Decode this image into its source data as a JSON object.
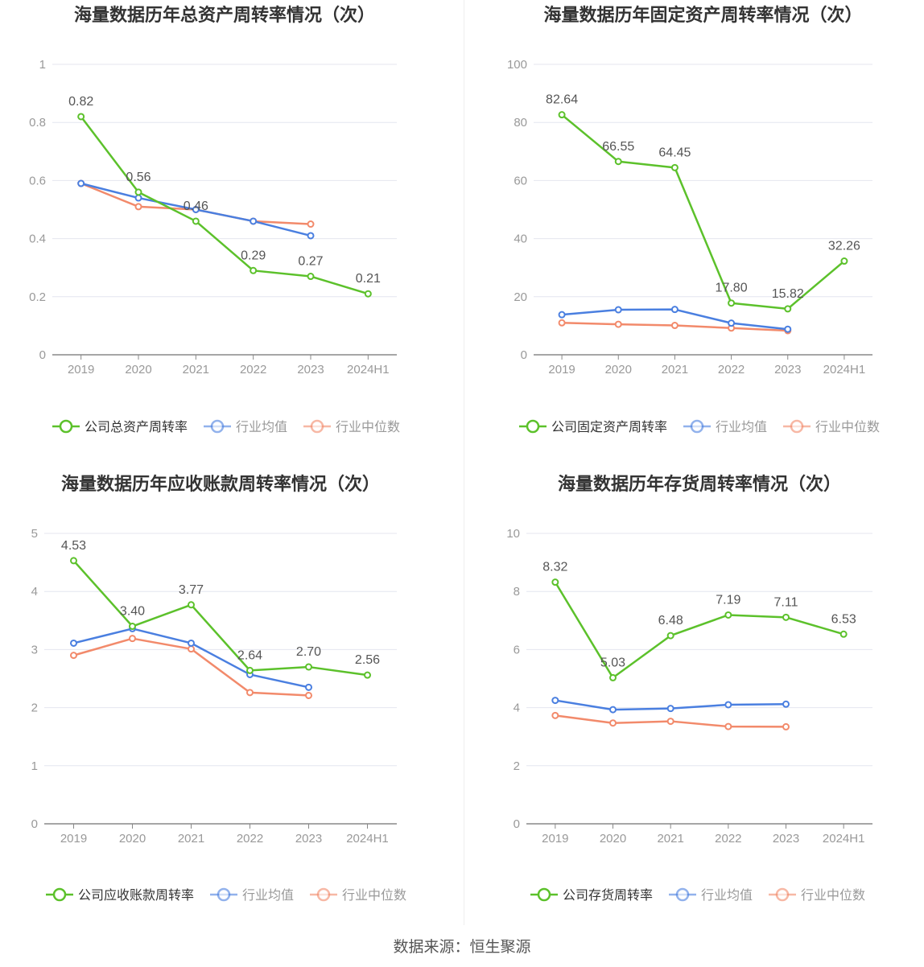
{
  "source_text": "数据来源：恒生聚源",
  "colors": {
    "company": "#5cc12b",
    "avg": "#4a7fe0",
    "median": "#f28a6b",
    "grid": "#e4e6ef",
    "axis": "#999999",
    "text": "#555555"
  },
  "chart_data": [
    {
      "type": "line",
      "title": "海量数据历年总资产周转率情况（次）",
      "categories": [
        "2019",
        "2020",
        "2021",
        "2022",
        "2023",
        "2024H1"
      ],
      "ylim": [
        0,
        1
      ],
      "yticks": [
        "0",
        "0.2",
        "0.4",
        "0.6",
        "0.8",
        "1"
      ],
      "ytick_values": [
        0,
        0.2,
        0.4,
        0.6,
        0.8,
        1
      ],
      "legend_position": "bottom",
      "series": [
        {
          "name": "公司总资产周转率",
          "values": [
            0.82,
            0.56,
            0.46,
            0.29,
            0.27,
            0.21
          ],
          "labels": [
            "0.82",
            "0.56",
            "0.46",
            "0.29",
            "0.27",
            "0.21"
          ]
        },
        {
          "name": "行业均值",
          "values": [
            0.59,
            0.54,
            0.5,
            0.46,
            0.41,
            null
          ]
        },
        {
          "name": "行业中位数",
          "values": [
            0.59,
            0.51,
            0.5,
            0.46,
            0.45,
            null
          ]
        }
      ]
    },
    {
      "type": "line",
      "title": "海量数据历年固定资产周转率情况（次）",
      "categories": [
        "2019",
        "2020",
        "2021",
        "2022",
        "2023",
        "2024H1"
      ],
      "ylim": [
        0,
        100
      ],
      "yticks": [
        "0",
        "20",
        "40",
        "60",
        "80",
        "100"
      ],
      "ytick_values": [
        0,
        20,
        40,
        60,
        80,
        100
      ],
      "legend_position": "bottom",
      "series": [
        {
          "name": "公司固定资产周转率",
          "values": [
            82.64,
            66.55,
            64.45,
            17.8,
            15.82,
            32.26
          ],
          "labels": [
            "82.64",
            "66.55",
            "64.45",
            "17.80",
            "15.82",
            "32.26"
          ]
        },
        {
          "name": "行业均值",
          "values": [
            13.8,
            15.5,
            15.6,
            10.9,
            8.8,
            null
          ]
        },
        {
          "name": "行业中位数",
          "values": [
            11.0,
            10.5,
            10.1,
            9.2,
            8.3,
            null
          ]
        }
      ]
    },
    {
      "type": "line",
      "title": "海量数据历年应收账款周转率情况（次）",
      "categories": [
        "2019",
        "2020",
        "2021",
        "2022",
        "2023",
        "2024H1"
      ],
      "ylim": [
        0,
        5
      ],
      "yticks": [
        "0",
        "1",
        "2",
        "3",
        "4",
        "5"
      ],
      "ytick_values": [
        0,
        1,
        2,
        3,
        4,
        5
      ],
      "legend_position": "bottom",
      "series": [
        {
          "name": "公司应收账款周转率",
          "values": [
            4.53,
            3.4,
            3.77,
            2.64,
            2.7,
            2.56
          ],
          "labels": [
            "4.53",
            "3.40",
            "3.77",
            "2.64",
            "2.70",
            "2.56"
          ]
        },
        {
          "name": "行业均值",
          "values": [
            3.11,
            3.36,
            3.11,
            2.57,
            2.35,
            null
          ]
        },
        {
          "name": "行业中位数",
          "values": [
            2.9,
            3.19,
            3.01,
            2.26,
            2.21,
            null
          ]
        }
      ]
    },
    {
      "type": "line",
      "title": "海量数据历年存货周转率情况（次）",
      "categories": [
        "2019",
        "2020",
        "2021",
        "2022",
        "2023",
        "2024H1"
      ],
      "ylim": [
        0,
        10
      ],
      "yticks": [
        "0",
        "2",
        "4",
        "6",
        "8",
        "10"
      ],
      "ytick_values": [
        0,
        2,
        4,
        6,
        8,
        10
      ],
      "legend_position": "bottom",
      "series": [
        {
          "name": "公司存货周转率",
          "values": [
            8.32,
            5.03,
            6.48,
            7.19,
            7.11,
            6.53
          ],
          "labels": [
            "8.32",
            "5.03",
            "6.48",
            "7.19",
            "7.11",
            "6.53"
          ]
        },
        {
          "name": "行业均值",
          "values": [
            4.25,
            3.93,
            3.97,
            4.1,
            4.12,
            null
          ]
        },
        {
          "name": "行业中位数",
          "values": [
            3.73,
            3.47,
            3.53,
            3.35,
            3.34,
            null
          ]
        }
      ]
    }
  ]
}
